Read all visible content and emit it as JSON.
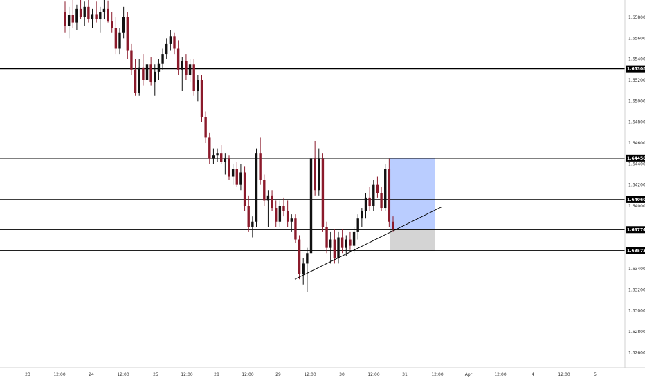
{
  "chart_data": {
    "type": "candlestick",
    "ylim": [
      1.624,
      1.66
    ],
    "y_ticks": [
      {
        "value": 1.658,
        "label": "1.65800"
      },
      {
        "value": 1.656,
        "label": "1.65600"
      },
      {
        "value": 1.654,
        "label": "1.65400"
      },
      {
        "value": 1.652,
        "label": "1.65200"
      },
      {
        "value": 1.65,
        "label": "1.65000"
      },
      {
        "value": 1.648,
        "label": "1.64800"
      },
      {
        "value": 1.646,
        "label": "1.64600"
      },
      {
        "value": 1.644,
        "label": "1.64400"
      },
      {
        "value": 1.642,
        "label": "1.64200"
      },
      {
        "value": 1.64,
        "label": "1.64000"
      },
      {
        "value": 1.634,
        "label": "1.63400"
      },
      {
        "value": 1.632,
        "label": "1.63200"
      },
      {
        "value": 1.63,
        "label": "1.63000"
      },
      {
        "value": 1.628,
        "label": "1.62800"
      },
      {
        "value": 1.626,
        "label": "1.62600"
      }
    ],
    "x_ticks": [
      "23",
      "12:00",
      "24",
      "12:00",
      "25",
      "12:00",
      "28",
      "12:00",
      "29",
      "12:00",
      "30",
      "12:00",
      "31",
      "12:00",
      "Apr",
      "12:00",
      "4",
      "12:00",
      "5"
    ],
    "levels": [
      {
        "value": 1.65308,
        "label": "1.65308"
      },
      {
        "value": 1.64456,
        "label": "1.64456"
      },
      {
        "value": 1.6406,
        "label": "1.64060"
      },
      {
        "value": 1.63774,
        "label": "1.63774"
      },
      {
        "value": 1.63573,
        "label": "1.63573"
      }
    ],
    "position": {
      "entry": 1.63774,
      "target": 1.64456,
      "stop": 1.63573
    },
    "trendline": {
      "from": {
        "bar": 0,
        "price": 1.633
      },
      "to": {
        "bar": 0,
        "price": 1.6399
      }
    },
    "candles": [
      [
        1.6585,
        1.6595,
        1.6565,
        1.6572
      ],
      [
        1.6572,
        1.659,
        1.656,
        1.6582
      ],
      [
        1.6582,
        1.6598,
        1.657,
        1.6575
      ],
      [
        1.6575,
        1.6592,
        1.6568,
        1.6588
      ],
      [
        1.6588,
        1.6598,
        1.6578,
        1.658
      ],
      [
        1.658,
        1.6595,
        1.6572,
        1.659
      ],
      [
        1.659,
        1.6598,
        1.6575,
        1.6578
      ],
      [
        1.6578,
        1.6588,
        1.657,
        1.6583
      ],
      [
        1.6583,
        1.6595,
        1.6575,
        1.6578
      ],
      [
        1.6578,
        1.659,
        1.6565,
        1.6585
      ],
      [
        1.6585,
        1.6598,
        1.6578,
        1.6588
      ],
      [
        1.6588,
        1.6596,
        1.6575,
        1.6576
      ],
      [
        1.6576,
        1.6585,
        1.6565,
        1.657
      ],
      [
        1.657,
        1.658,
        1.6545,
        1.655
      ],
      [
        1.655,
        1.657,
        1.6545,
        1.6565
      ],
      [
        1.6565,
        1.659,
        1.656,
        1.658
      ],
      [
        1.658,
        1.6585,
        1.654,
        1.6548
      ],
      [
        1.6548,
        1.6555,
        1.6525,
        1.653
      ],
      [
        1.653,
        1.654,
        1.6505,
        1.6508
      ],
      [
        1.6508,
        1.654,
        1.6505,
        1.6532
      ],
      [
        1.6532,
        1.6545,
        1.6515,
        1.652
      ],
      [
        1.652,
        1.654,
        1.651,
        1.6535
      ],
      [
        1.6535,
        1.6542,
        1.6515,
        1.6518
      ],
      [
        1.6518,
        1.6535,
        1.6505,
        1.6528
      ],
      [
        1.6528,
        1.654,
        1.652,
        1.6536
      ],
      [
        1.6536,
        1.655,
        1.653,
        1.6545
      ],
      [
        1.6545,
        1.656,
        1.654,
        1.6555
      ],
      [
        1.6555,
        1.6568,
        1.6548,
        1.6562
      ],
      [
        1.6562,
        1.6565,
        1.6545,
        1.655
      ],
      [
        1.655,
        1.6558,
        1.6525,
        1.653
      ],
      [
        1.653,
        1.6542,
        1.651,
        1.6538
      ],
      [
        1.6538,
        1.6545,
        1.652,
        1.6525
      ],
      [
        1.6525,
        1.654,
        1.6518,
        1.6535
      ],
      [
        1.6535,
        1.654,
        1.6505,
        1.651
      ],
      [
        1.651,
        1.6525,
        1.65,
        1.652
      ],
      [
        1.652,
        1.6525,
        1.648,
        1.6485
      ],
      [
        1.6485,
        1.649,
        1.646,
        1.6465
      ],
      [
        1.6465,
        1.647,
        1.644,
        1.6445
      ],
      [
        1.6445,
        1.6455,
        1.644,
        1.6448
      ],
      [
        1.6448,
        1.6455,
        1.6442,
        1.645
      ],
      [
        1.645,
        1.6458,
        1.644,
        1.6442
      ],
      [
        1.6442,
        1.645,
        1.643,
        1.6445
      ],
      [
        1.6445,
        1.6448,
        1.6425,
        1.6428
      ],
      [
        1.6428,
        1.644,
        1.642,
        1.6435
      ],
      [
        1.6435,
        1.6442,
        1.6418,
        1.642
      ],
      [
        1.642,
        1.644,
        1.6415,
        1.6432
      ],
      [
        1.6432,
        1.6438,
        1.6395,
        1.64
      ],
      [
        1.64,
        1.641,
        1.6375,
        1.638
      ],
      [
        1.638,
        1.639,
        1.637,
        1.6385
      ],
      [
        1.6385,
        1.6455,
        1.638,
        1.645
      ],
      [
        1.645,
        1.6465,
        1.642,
        1.6425
      ],
      [
        1.6425,
        1.643,
        1.64,
        1.6405
      ],
      [
        1.6405,
        1.6415,
        1.638,
        1.641
      ],
      [
        1.641,
        1.6415,
        1.6395,
        1.6398
      ],
      [
        1.6398,
        1.6405,
        1.638,
        1.6385
      ],
      [
        1.6385,
        1.6405,
        1.638,
        1.64
      ],
      [
        1.64,
        1.6408,
        1.639,
        1.6395
      ],
      [
        1.6395,
        1.6405,
        1.638,
        1.6385
      ],
      [
        1.6385,
        1.6392,
        1.6375,
        1.6388
      ],
      [
        1.6388,
        1.6392,
        1.6365,
        1.6368
      ],
      [
        1.6368,
        1.6372,
        1.633,
        1.6335
      ],
      [
        1.6335,
        1.635,
        1.6325,
        1.6345
      ],
      [
        1.6345,
        1.636,
        1.6318,
        1.6355
      ],
      [
        1.6355,
        1.6465,
        1.635,
        1.6445
      ],
      [
        1.6445,
        1.6462,
        1.641,
        1.6415
      ],
      [
        1.6415,
        1.6455,
        1.641,
        1.6445
      ],
      [
        1.6445,
        1.645,
        1.6375,
        1.638
      ],
      [
        1.638,
        1.6385,
        1.6355,
        1.636
      ],
      [
        1.636,
        1.6375,
        1.6345,
        1.6368
      ],
      [
        1.6368,
        1.6378,
        1.6345,
        1.635
      ],
      [
        1.635,
        1.6375,
        1.6345,
        1.637
      ],
      [
        1.637,
        1.6378,
        1.6355,
        1.636
      ],
      [
        1.636,
        1.6372,
        1.6352,
        1.6368
      ],
      [
        1.6368,
        1.6375,
        1.6358,
        1.6362
      ],
      [
        1.6362,
        1.638,
        1.6355,
        1.6375
      ],
      [
        1.6375,
        1.6392,
        1.6368,
        1.6388
      ],
      [
        1.6388,
        1.6398,
        1.638,
        1.6395
      ],
      [
        1.6395,
        1.6412,
        1.6388,
        1.6408
      ],
      [
        1.6408,
        1.6418,
        1.6395,
        1.64
      ],
      [
        1.64,
        1.6425,
        1.6395,
        1.642
      ],
      [
        1.642,
        1.6428,
        1.6408,
        1.6412
      ],
      [
        1.6412,
        1.6418,
        1.6395,
        1.6398
      ],
      [
        1.6398,
        1.644,
        1.6395,
        1.6435
      ],
      [
        1.6435,
        1.6445,
        1.638,
        1.6385
      ],
      [
        1.6385,
        1.639,
        1.6375,
        1.6378
      ]
    ]
  }
}
